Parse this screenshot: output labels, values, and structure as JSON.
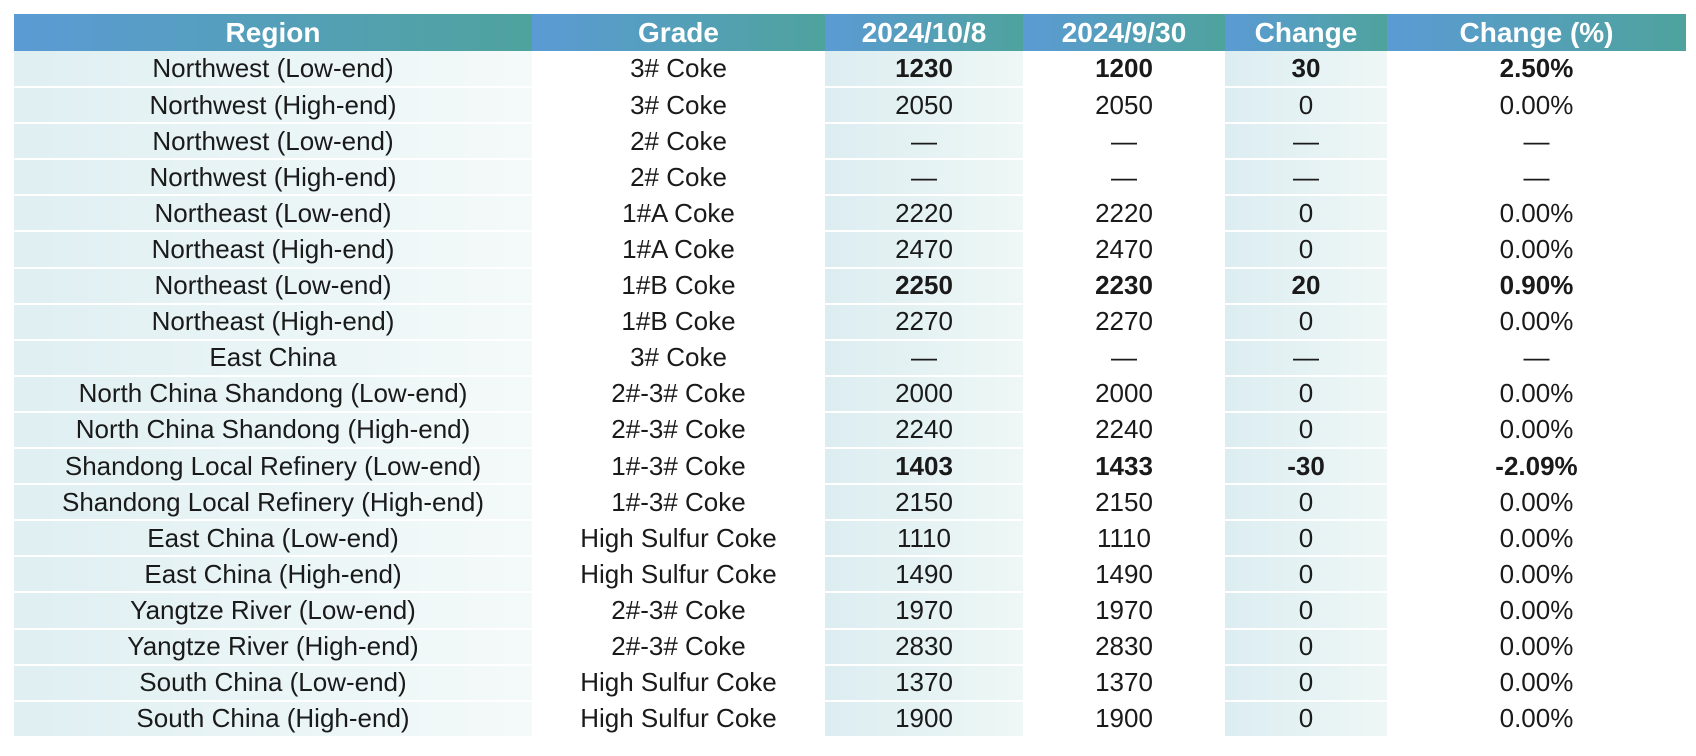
{
  "chart_data": {
    "type": "table",
    "columns": [
      "Region",
      "Grade",
      "2024/10/8",
      "2024/9/30",
      "Change",
      "Change (%)"
    ],
    "rows": [
      [
        "Northwest (Low-end)",
        "3# Coke",
        "1230",
        "1200",
        "30",
        "2.50%"
      ],
      [
        "Northwest (High-end)",
        "3# Coke",
        "2050",
        "2050",
        "0",
        "0.00%"
      ],
      [
        "Northwest (Low-end)",
        "2# Coke",
        "—",
        "—",
        "—",
        "—"
      ],
      [
        "Northwest (High-end)",
        "2# Coke",
        "—",
        "—",
        "—",
        "—"
      ],
      [
        "Northeast (Low-end)",
        "1#A Coke",
        "2220",
        "2220",
        "0",
        "0.00%"
      ],
      [
        "Northeast (High-end)",
        "1#A Coke",
        "2470",
        "2470",
        "0",
        "0.00%"
      ],
      [
        "Northeast (Low-end)",
        "1#B Coke",
        "2250",
        "2230",
        "20",
        "0.90%"
      ],
      [
        "Northeast (High-end)",
        "1#B Coke",
        "2270",
        "2270",
        "0",
        "0.00%"
      ],
      [
        "East China",
        "3# Coke",
        "—",
        "—",
        "—",
        "—"
      ],
      [
        "North China Shandong (Low-end)",
        "2#-3# Coke",
        "2000",
        "2000",
        "0",
        "0.00%"
      ],
      [
        "North China Shandong (High-end)",
        "2#-3# Coke",
        "2240",
        "2240",
        "0",
        "0.00%"
      ],
      [
        "Shandong Local Refinery (Low-end)",
        "1#-3# Coke",
        "1403",
        "1433",
        "-30",
        "-2.09%"
      ],
      [
        "Shandong Local Refinery (High-end)",
        "1#-3# Coke",
        "2150",
        "2150",
        "0",
        "0.00%"
      ],
      [
        "East China (Low-end)",
        "High Sulfur Coke",
        "1110",
        "1110",
        "0",
        "0.00%"
      ],
      [
        "East China (High-end)",
        "High Sulfur Coke",
        "1490",
        "1490",
        "0",
        "0.00%"
      ],
      [
        "Yangtze River (Low-end)",
        "2#-3# Coke",
        "1970",
        "1970",
        "0",
        "0.00%"
      ],
      [
        "Yangtze River (High-end)",
        "2#-3# Coke",
        "2830",
        "2830",
        "0",
        "0.00%"
      ],
      [
        "South China (Low-end)",
        "High Sulfur Coke",
        "1370",
        "1370",
        "0",
        "0.00%"
      ],
      [
        "South China (High-end)",
        "High Sulfur Coke",
        "1900",
        "1900",
        "0",
        "0.00%"
      ]
    ],
    "highlight": {
      "up_color": "#ff0000",
      "down_color": "#00b050",
      "up_rows": [
        0,
        6
      ],
      "down_rows": [
        11
      ]
    }
  },
  "colors": {
    "header_start": "#5b9bd5",
    "header_end": "#4ea39d",
    "stripe": "#dcedf1"
  }
}
